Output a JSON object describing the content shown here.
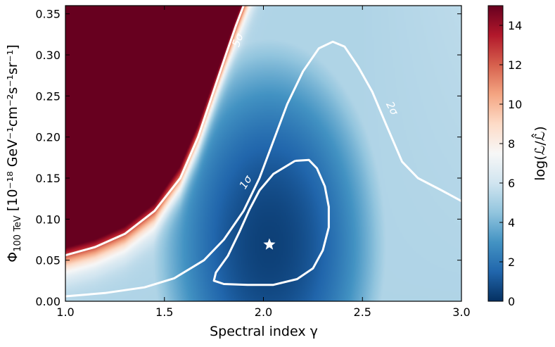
{
  "chart_data": {
    "type": "heatmap",
    "xlabel": "Spectral index γ",
    "ylabel_main": "Φ",
    "ylabel_sub": "100 TeV",
    "ylabel_unit": " [10⁻¹⁸ GeV⁻¹cm⁻²s⁻¹sr⁻¹]",
    "colorbar_label": "log(ℒ/ℒ̂)",
    "xlim": [
      1.0,
      3.0
    ],
    "ylim": [
      0.0,
      0.36
    ],
    "zlim": [
      0,
      15
    ],
    "x_ticks": [
      1.0,
      1.5,
      2.0,
      2.5,
      3.0
    ],
    "x_tick_labels": [
      "1.0",
      "1.5",
      "2.0",
      "2.5",
      "3.0"
    ],
    "y_ticks": [
      0.0,
      0.05,
      0.1,
      0.15,
      0.2,
      0.25,
      0.3,
      0.35
    ],
    "y_tick_labels": [
      "0.00",
      "0.05",
      "0.10",
      "0.15",
      "0.20",
      "0.25",
      "0.30",
      "0.35"
    ],
    "colorbar_ticks": [
      0,
      2,
      4,
      6,
      8,
      10,
      12,
      14
    ],
    "colorbar_tick_labels": [
      "0",
      "2",
      "4",
      "6",
      "8",
      "10",
      "12",
      "14"
    ],
    "best_fit": {
      "x": 2.03,
      "y": 0.069,
      "marker": "star"
    },
    "colormap": "RdBu_r",
    "contours": [
      {
        "label": "1σ",
        "label_pos": {
          "x": 1.91,
          "y": 0.145
        },
        "points": [
          [
            2.16,
            0.171
          ],
          [
            2.23,
            0.172
          ],
          [
            2.27,
            0.162
          ],
          [
            2.31,
            0.14
          ],
          [
            2.33,
            0.115
          ],
          [
            2.33,
            0.09
          ],
          [
            2.3,
            0.062
          ],
          [
            2.25,
            0.04
          ],
          [
            2.17,
            0.027
          ],
          [
            2.05,
            0.02
          ],
          [
            1.92,
            0.02
          ],
          [
            1.8,
            0.021
          ],
          [
            1.75,
            0.025
          ],
          [
            1.76,
            0.035
          ],
          [
            1.82,
            0.055
          ],
          [
            1.88,
            0.085
          ],
          [
            1.93,
            0.112
          ],
          [
            1.98,
            0.135
          ],
          [
            2.05,
            0.155
          ],
          [
            2.16,
            0.171
          ]
        ]
      },
      {
        "label": "2σ",
        "points": [
          [
            1.0,
            0.006
          ],
          [
            1.2,
            0.01
          ],
          [
            1.4,
            0.017
          ],
          [
            1.55,
            0.028
          ],
          [
            1.7,
            0.05
          ],
          [
            1.8,
            0.075
          ],
          [
            1.9,
            0.11
          ],
          [
            1.98,
            0.15
          ],
          [
            2.05,
            0.195
          ],
          [
            2.12,
            0.24
          ],
          [
            2.2,
            0.28
          ],
          [
            2.28,
            0.308
          ],
          [
            2.35,
            0.316
          ],
          [
            2.41,
            0.31
          ],
          [
            2.48,
            0.285
          ],
          [
            2.55,
            0.255
          ],
          [
            2.62,
            0.215
          ],
          [
            2.7,
            0.17
          ],
          [
            2.78,
            0.15
          ],
          [
            2.9,
            0.135
          ],
          [
            3.0,
            0.122
          ]
        ]
      },
      {
        "label": "5σ",
        "points": [
          [
            1.0,
            0.056
          ],
          [
            1.15,
            0.066
          ],
          [
            1.3,
            0.082
          ],
          [
            1.45,
            0.11
          ],
          [
            1.58,
            0.15
          ],
          [
            1.67,
            0.2
          ],
          [
            1.74,
            0.25
          ],
          [
            1.81,
            0.3
          ],
          [
            1.86,
            0.335
          ],
          [
            1.9,
            0.36
          ]
        ]
      }
    ]
  }
}
